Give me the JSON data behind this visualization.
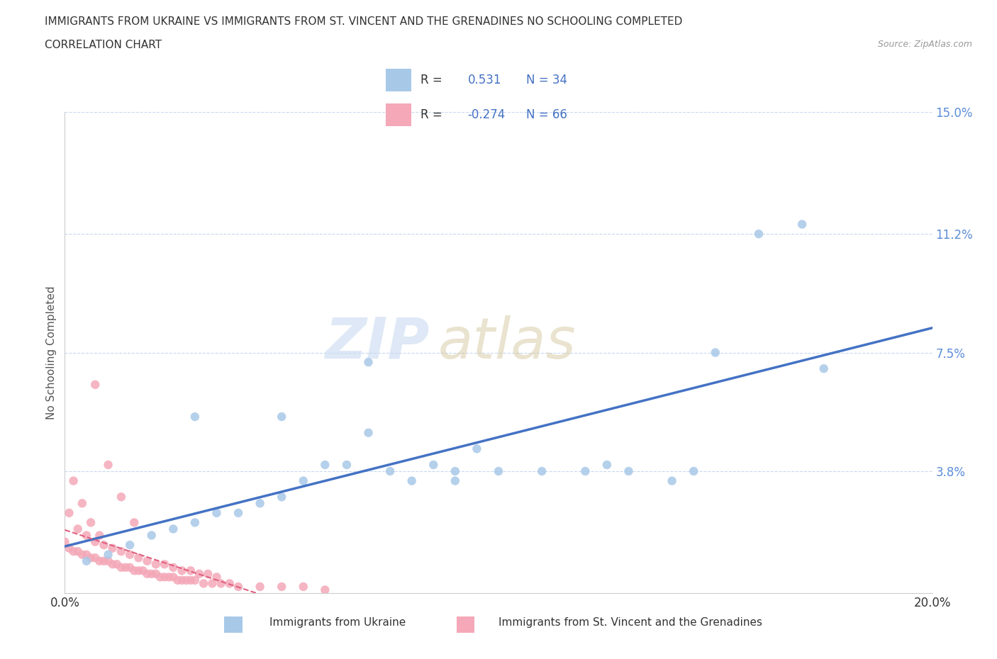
{
  "title_line1": "IMMIGRANTS FROM UKRAINE VS IMMIGRANTS FROM ST. VINCENT AND THE GRENADINES NO SCHOOLING COMPLETED",
  "title_line2": "CORRELATION CHART",
  "source_text": "Source: ZipAtlas.com",
  "ylabel": "No Schooling Completed",
  "xmin": 0.0,
  "xmax": 0.2,
  "ymin": 0.0,
  "ymax": 0.15,
  "ytick_vals": [
    0.0,
    0.038,
    0.075,
    0.112,
    0.15
  ],
  "ytick_labels": [
    "",
    "3.8%",
    "7.5%",
    "11.2%",
    "15.0%"
  ],
  "xtick_vals": [
    0.0,
    0.2
  ],
  "xtick_labels": [
    "0.0%",
    "20.0%"
  ],
  "r_ukraine": 0.531,
  "n_ukraine": 34,
  "r_svg": -0.274,
  "n_svg": 66,
  "ukraine_color": "#a8c8e8",
  "svg_color": "#f4a8b8",
  "ukraine_line_color": "#4472c4",
  "svg_line_color": "#e06080",
  "tick_color": "#5b8dd9",
  "ukraine_scatter_x": [
    0.005,
    0.01,
    0.015,
    0.02,
    0.025,
    0.03,
    0.035,
    0.04,
    0.045,
    0.05,
    0.055,
    0.06,
    0.065,
    0.07,
    0.075,
    0.08,
    0.085,
    0.09,
    0.095,
    0.1,
    0.11,
    0.12,
    0.125,
    0.13,
    0.14,
    0.145,
    0.15,
    0.16,
    0.17,
    0.175,
    0.03,
    0.05,
    0.07,
    0.09
  ],
  "ukraine_scatter_y": [
    0.01,
    0.012,
    0.015,
    0.018,
    0.02,
    0.022,
    0.025,
    0.025,
    0.028,
    0.03,
    0.035,
    0.04,
    0.04,
    0.05,
    0.038,
    0.035,
    0.04,
    0.038,
    0.045,
    0.038,
    0.038,
    0.038,
    0.04,
    0.038,
    0.035,
    0.038,
    0.075,
    0.112,
    0.115,
    0.07,
    0.055,
    0.055,
    0.072,
    0.035
  ],
  "svg_scatter_x": [
    0.0,
    0.001,
    0.002,
    0.003,
    0.004,
    0.005,
    0.006,
    0.007,
    0.008,
    0.009,
    0.01,
    0.011,
    0.012,
    0.013,
    0.014,
    0.015,
    0.016,
    0.017,
    0.018,
    0.019,
    0.02,
    0.021,
    0.022,
    0.023,
    0.024,
    0.025,
    0.026,
    0.027,
    0.028,
    0.029,
    0.03,
    0.032,
    0.034,
    0.036,
    0.038,
    0.04,
    0.045,
    0.05,
    0.055,
    0.06,
    0.001,
    0.003,
    0.005,
    0.007,
    0.009,
    0.011,
    0.013,
    0.015,
    0.017,
    0.019,
    0.021,
    0.023,
    0.025,
    0.027,
    0.029,
    0.031,
    0.033,
    0.035,
    0.007,
    0.01,
    0.013,
    0.016,
    0.002,
    0.004,
    0.006,
    0.008
  ],
  "svg_scatter_y": [
    0.016,
    0.014,
    0.013,
    0.013,
    0.012,
    0.012,
    0.011,
    0.011,
    0.01,
    0.01,
    0.01,
    0.009,
    0.009,
    0.008,
    0.008,
    0.008,
    0.007,
    0.007,
    0.007,
    0.006,
    0.006,
    0.006,
    0.005,
    0.005,
    0.005,
    0.005,
    0.004,
    0.004,
    0.004,
    0.004,
    0.004,
    0.003,
    0.003,
    0.003,
    0.003,
    0.002,
    0.002,
    0.002,
    0.002,
    0.001,
    0.025,
    0.02,
    0.018,
    0.016,
    0.015,
    0.014,
    0.013,
    0.012,
    0.011,
    0.01,
    0.009,
    0.009,
    0.008,
    0.007,
    0.007,
    0.006,
    0.006,
    0.005,
    0.065,
    0.04,
    0.03,
    0.022,
    0.035,
    0.028,
    0.022,
    0.018
  ]
}
